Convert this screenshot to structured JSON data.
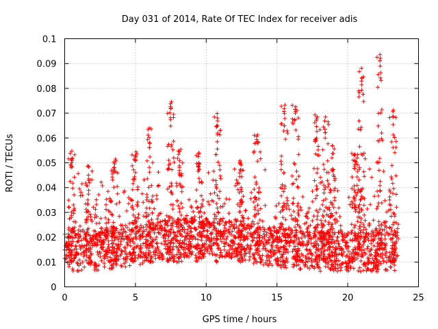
{
  "chart_data": {
    "type": "scatter",
    "title": "Day 031 of 2014, Rate Of TEC Index for receiver adis",
    "xlabel": "GPS time / hours",
    "ylabel": "ROTI / TECUs",
    "xlim": [
      0,
      25
    ],
    "ylim": [
      0,
      0.1
    ],
    "xticks": [
      "0",
      "5",
      "10",
      "15",
      "20",
      "25"
    ],
    "yticks": [
      "0",
      "0.01",
      "0.02",
      "0.03",
      "0.04",
      "0.05",
      "0.06",
      "0.07",
      "0.08",
      "0.09",
      "0.1"
    ],
    "grid": true,
    "marker": "plus",
    "marker_color": "#ff0000",
    "series": [
      {
        "name": "ROTI",
        "baseline_range": [
          0.005,
          0.03
        ],
        "peak_times": [
          0.5,
          1.7,
          3.5,
          5.0,
          6.0,
          7.5,
          8.1,
          9.5,
          10.8,
          12.4,
          13.6,
          15.5,
          16.3,
          17.8,
          18.4,
          18.9,
          20.5,
          21.0,
          22.3,
          23.2
        ],
        "peak_values": [
          0.059,
          0.05,
          0.052,
          0.055,
          0.064,
          0.076,
          0.057,
          0.054,
          0.07,
          0.051,
          0.062,
          0.074,
          0.075,
          0.07,
          0.069,
          0.058,
          0.054,
          0.089,
          0.095,
          0.072
        ]
      }
    ]
  }
}
